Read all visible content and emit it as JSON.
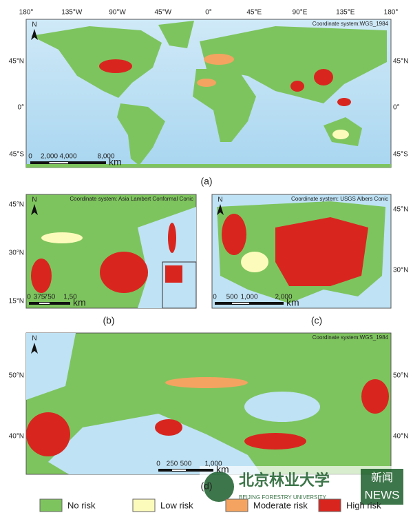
{
  "panels": [
    {
      "caption": "(a)",
      "coordinate_system": "Coordinate system:WGS_1984",
      "top_labels": [
        "180°",
        "135°W",
        "90°W",
        "45°W",
        "0°",
        "45°E",
        "90°E",
        "135°E",
        "180°"
      ],
      "left_labels": [
        "45°N",
        "0°",
        "45°S"
      ],
      "right_labels": [
        "45°N",
        "0°",
        "45°S"
      ],
      "scale_labels": [
        "0",
        "2,000",
        "4,000",
        "8,000"
      ],
      "scale_unit": "km",
      "north": "N"
    },
    {
      "caption": "(b)",
      "coordinate_system": "Coordinate system: Asia Lambert Conformal Conic",
      "left_labels": [
        "45°N",
        "30°N",
        "15°N"
      ],
      "scale_labels": [
        "0",
        "375",
        "750",
        "1,50"
      ],
      "scale_unit": "km",
      "north": "N"
    },
    {
      "caption": "(c)",
      "coordinate_system": "Coordinate system: USGS Albers Conic",
      "right_labels": [
        "45°N",
        "30°N"
      ],
      "scale_labels": [
        "0",
        "500",
        "1,000",
        "2,000"
      ],
      "scale_unit": "km",
      "north": "N"
    },
    {
      "caption": "(d)",
      "coordinate_system": "Coordinate system:WGS_1984",
      "left_labels": [
        "50°N",
        "40°N"
      ],
      "right_labels": [
        "50°N",
        "40°N"
      ],
      "scale_labels": [
        "0",
        "250",
        "500",
        "1,000"
      ],
      "scale_unit": "km",
      "north": "N"
    }
  ],
  "legend": [
    {
      "label": "No risk",
      "color": "#7ec45e"
    },
    {
      "label": "Low risk",
      "color": "#fdfbbb"
    },
    {
      "label": "Moderate risk",
      "color": "#f4a460"
    },
    {
      "label": "High risk",
      "color": "#d8261f"
    }
  ],
  "watermark": {
    "name": "北京林业大学",
    "name_en": "BEIJING FORESTRY UNIVERSITY",
    "news_cn": "新闻",
    "news_en": "NEWS"
  }
}
